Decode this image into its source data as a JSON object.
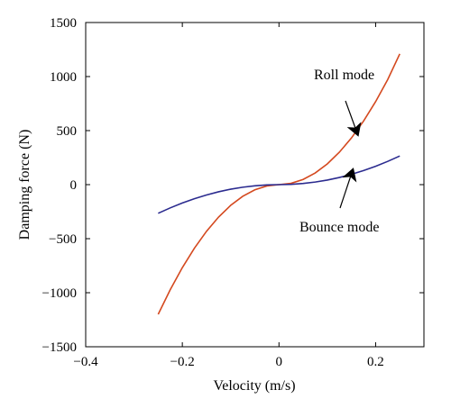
{
  "chart_data": {
    "type": "line",
    "title": "",
    "xlabel": "Velocity (m/s)",
    "ylabel": "Damping force (N)",
    "xlim": [
      -0.4,
      0.3
    ],
    "ylim": [
      -1500,
      1500
    ],
    "xticks": [
      -0.4,
      -0.2,
      0,
      0.2
    ],
    "xtick_labels": [
      "−0.4",
      "−0.2",
      "0",
      "0.2"
    ],
    "yticks": [
      -1500,
      -1000,
      -500,
      0,
      500,
      1000,
      1500
    ],
    "ytick_labels": [
      "−1500",
      "−1000",
      "−500",
      "0",
      "500",
      "1000",
      "1500"
    ],
    "grid": false,
    "legend": "none",
    "series": [
      {
        "name": "Roll mode",
        "color": "#d4491f",
        "x": [
          -0.25,
          -0.225,
          -0.2,
          -0.175,
          -0.15,
          -0.125,
          -0.1,
          -0.075,
          -0.05,
          -0.025,
          0,
          0.025,
          0.05,
          0.075,
          0.1,
          0.125,
          0.15,
          0.175,
          0.2,
          0.225,
          0.25
        ],
        "y": [
          -1200,
          -972,
          -768,
          -588,
          -432,
          -300,
          -192,
          -108,
          -48,
          -12,
          0,
          12,
          48,
          108,
          192,
          300,
          432,
          588,
          768,
          972,
          1210
        ]
      },
      {
        "name": "Bounce mode",
        "color": "#2b2b8f",
        "x": [
          -0.25,
          -0.225,
          -0.2,
          -0.175,
          -0.15,
          -0.125,
          -0.1,
          -0.075,
          -0.05,
          -0.025,
          0,
          0.025,
          0.05,
          0.075,
          0.1,
          0.125,
          0.15,
          0.175,
          0.2,
          0.225,
          0.25
        ],
        "y": [
          -265,
          -215,
          -170,
          -130,
          -96,
          -66,
          -42,
          -24,
          -11,
          -3,
          0,
          3,
          11,
          24,
          42,
          66,
          96,
          130,
          170,
          215,
          265
        ]
      }
    ],
    "annotations": [
      {
        "text": "Roll mode",
        "series": "Roll mode",
        "point_x": 0.16,
        "point_y": 500
      },
      {
        "text": "Bounce mode",
        "series": "Bounce mode",
        "point_x": 0.15,
        "point_y": 100
      }
    ]
  }
}
